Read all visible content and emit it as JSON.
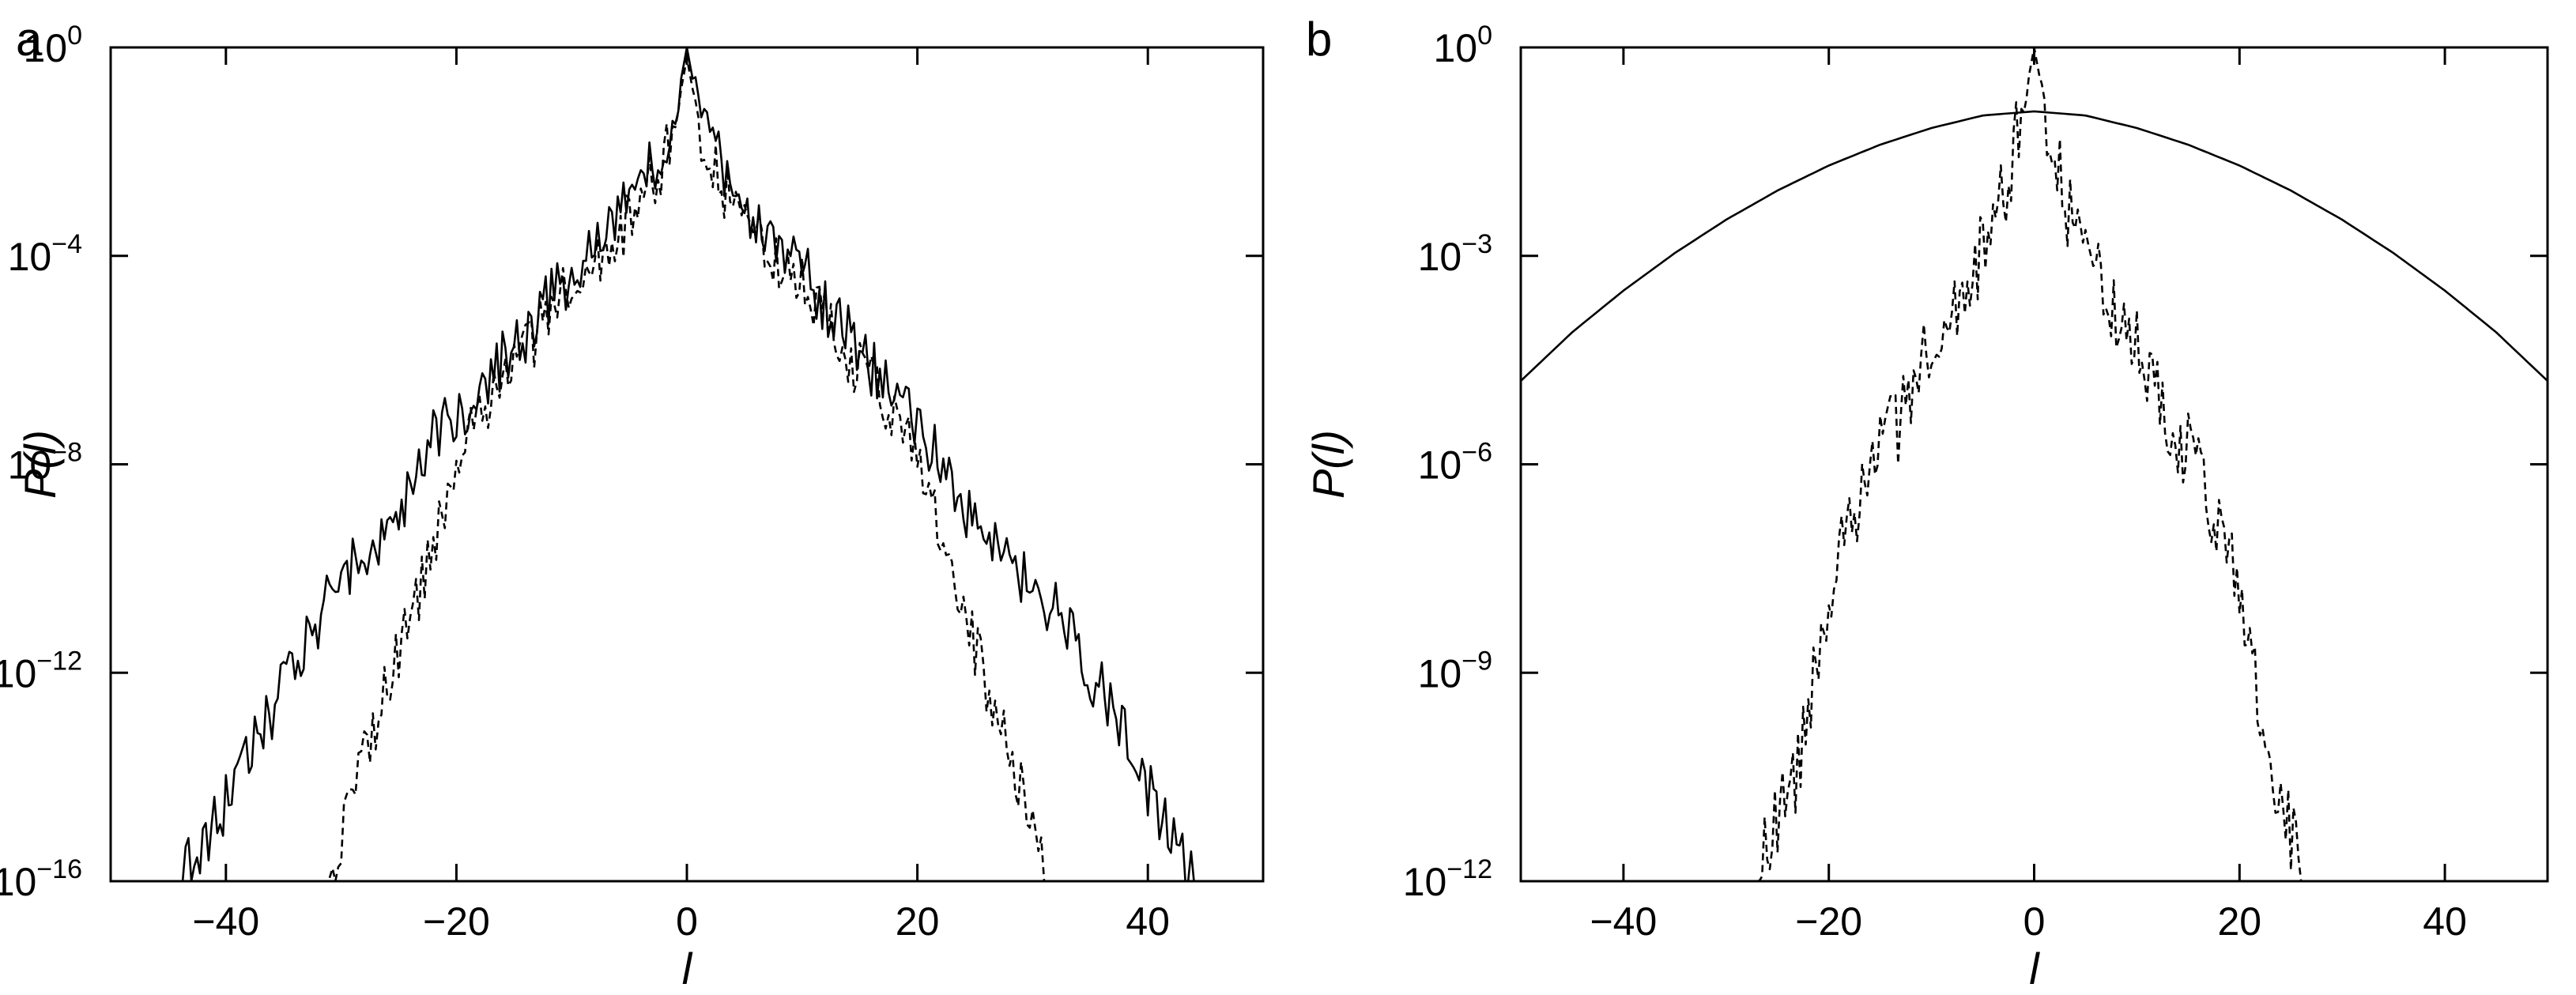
{
  "chart_data": [
    {
      "panel_label": "a",
      "type": "line",
      "xlabel": "l",
      "ylabel": "P(l)",
      "xlim": [
        -50,
        50
      ],
      "ylim_log10": [
        -16,
        0
      ],
      "x_ticks": [
        -40,
        -20,
        0,
        20,
        40
      ],
      "x_tick_labels": [
        "−40",
        "−20",
        "0",
        "20",
        "40"
      ],
      "y_ticks_log10": [
        0,
        -4,
        -8,
        -12,
        -16
      ],
      "y_tick_labels": [
        {
          "base": "10",
          "exp": "0"
        },
        {
          "base": "10",
          "exp": "−4"
        },
        {
          "base": "10",
          "exp": "−8"
        },
        {
          "base": "10",
          "exp": "−12"
        },
        {
          "base": "10",
          "exp": "−16"
        }
      ],
      "y_scale": "log",
      "grid": false,
      "series": [
        {
          "name": "solid",
          "style": "solid",
          "x": [
            -44,
            -40,
            -35,
            -30,
            -27,
            -24,
            -22,
            -20,
            -17,
            -14,
            -12,
            -10,
            -8,
            -6,
            -4,
            -2,
            -1,
            0,
            1,
            2,
            4,
            6,
            8,
            10,
            12,
            14,
            17,
            20,
            22,
            24,
            27,
            30,
            33,
            35,
            38,
            40,
            42,
            44
          ],
          "log10_p": [
            -16,
            -14.5,
            -12.3,
            -10.2,
            -9.6,
            -8.5,
            -7.3,
            -7.1,
            -6.3,
            -5.5,
            -4.9,
            -4.3,
            -3.8,
            -3.3,
            -2.6,
            -1.9,
            -1.2,
            0,
            -1.2,
            -1.9,
            -2.6,
            -3.3,
            -3.8,
            -4.3,
            -4.9,
            -5.5,
            -6.4,
            -7.3,
            -8.0,
            -8.9,
            -9.6,
            -10.3,
            -11.0,
            -12.0,
            -13.0,
            -14.2,
            -15.2,
            -16
          ]
        },
        {
          "name": "dashed",
          "style": "dashed",
          "x": [
            -31,
            -29,
            -27,
            -25,
            -23,
            -20,
            -17,
            -14,
            -12,
            -10,
            -8,
            -6,
            -4,
            -2,
            -1,
            0,
            1,
            2,
            4,
            6,
            8,
            10,
            12,
            14,
            17,
            20,
            22,
            24,
            26,
            28,
            30,
            31
          ],
          "log10_p": [
            -16,
            -14.2,
            -13.0,
            -11.5,
            -10.3,
            -7.8,
            -6.8,
            -5.9,
            -5.1,
            -4.6,
            -4.1,
            -3.6,
            -3.0,
            -2.2,
            -1.4,
            -0.2,
            -1.4,
            -2.2,
            -3.0,
            -3.6,
            -4.1,
            -4.6,
            -5.1,
            -5.9,
            -6.8,
            -7.8,
            -9.2,
            -10.8,
            -12.2,
            -13.6,
            -15.0,
            -16
          ]
        }
      ]
    },
    {
      "panel_label": "b",
      "type": "line",
      "xlabel": "l",
      "ylabel": "P(l)",
      "xlim": [
        -50,
        50
      ],
      "ylim_log10": [
        -12,
        0
      ],
      "x_ticks": [
        -40,
        -20,
        0,
        20,
        40
      ],
      "x_tick_labels": [
        "−40",
        "−20",
        "0",
        "20",
        "40"
      ],
      "y_ticks_log10": [
        0,
        -3,
        -6,
        -9,
        -12
      ],
      "y_tick_labels": [
        {
          "base": "10",
          "exp": "0"
        },
        {
          "base": "10",
          "exp": "−3"
        },
        {
          "base": "10",
          "exp": "−6"
        },
        {
          "base": "10",
          "exp": "−9"
        },
        {
          "base": "10",
          "exp": "−12"
        }
      ],
      "y_scale": "log",
      "grid": false,
      "series": [
        {
          "name": "solid",
          "style": "solid",
          "x": [
            -50,
            -45,
            -40,
            -35,
            -30,
            -25,
            -20,
            -15,
            -10,
            -5,
            0,
            5,
            10,
            15,
            20,
            25,
            30,
            35,
            40,
            45,
            50
          ],
          "log10_p": [
            -4.8,
            -4.1,
            -3.5,
            -2.96,
            -2.48,
            -2.06,
            -1.7,
            -1.4,
            -1.16,
            -0.98,
            -0.92,
            -0.98,
            -1.16,
            -1.4,
            -1.7,
            -2.06,
            -2.48,
            -2.96,
            -3.5,
            -4.1,
            -4.8
          ]
        },
        {
          "name": "dashed",
          "style": "dashed",
          "x": [
            -27,
            -25,
            -23,
            -21,
            -19,
            -17,
            -15,
            -13,
            -11,
            -9,
            -7,
            -5,
            -3,
            -2,
            -1,
            0,
            1,
            2,
            3,
            5,
            7,
            9,
            11,
            13,
            15,
            17,
            19,
            21,
            23,
            25,
            26
          ],
          "log10_p": [
            -12,
            -11.0,
            -10.4,
            -8.5,
            -7.3,
            -6.6,
            -5.8,
            -5.4,
            -4.6,
            -4.1,
            -3.5,
            -2.9,
            -2.2,
            -1.5,
            -0.8,
            0,
            -0.8,
            -1.5,
            -2.2,
            -2.9,
            -3.5,
            -4.1,
            -4.6,
            -5.4,
            -5.8,
            -6.6,
            -7.3,
            -8.5,
            -10.4,
            -11.3,
            -12
          ]
        }
      ]
    }
  ]
}
